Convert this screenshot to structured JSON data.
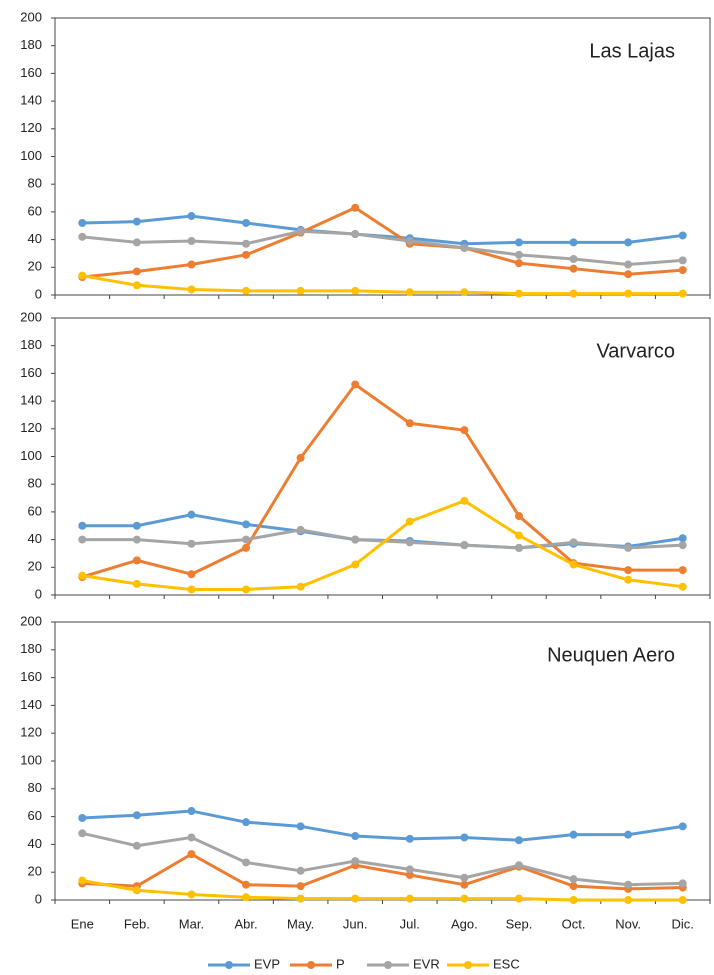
{
  "chart_data": [
    {
      "type": "line",
      "title": "Las Lajas",
      "ylim": [
        0,
        200
      ],
      "yticks": [
        0,
        20,
        40,
        60,
        80,
        100,
        120,
        140,
        160,
        180,
        200
      ],
      "series": [
        {
          "color": "#5b9bd5",
          "values": [
            52,
            53,
            57,
            52,
            47,
            44,
            41,
            37,
            38,
            38,
            38,
            43
          ]
        },
        {
          "color": "#ed7d31",
          "values": [
            13,
            17,
            22,
            29,
            45,
            63,
            37,
            34,
            23,
            19,
            15,
            18
          ]
        },
        {
          "color": "#a5a5a5",
          "values": [
            42,
            38,
            39,
            37,
            46,
            44,
            39,
            34,
            29,
            26,
            22,
            25
          ]
        },
        {
          "color": "#ffc000",
          "values": [
            14,
            7,
            4,
            3,
            3,
            3,
            2,
            2,
            1,
            1,
            1,
            1
          ]
        }
      ]
    },
    {
      "type": "line",
      "title": "Varvarco",
      "ylim": [
        0,
        200
      ],
      "yticks": [
        0,
        20,
        40,
        60,
        80,
        100,
        120,
        140,
        160,
        180,
        200
      ],
      "series": [
        {
          "color": "#5b9bd5",
          "values": [
            50,
            50,
            58,
            51,
            46,
            40,
            39,
            36,
            34,
            37,
            35,
            41
          ]
        },
        {
          "color": "#ed7d31",
          "values": [
            13,
            25,
            15,
            34,
            99,
            152,
            124,
            119,
            57,
            23,
            18,
            18
          ]
        },
        {
          "color": "#a5a5a5",
          "values": [
            40,
            40,
            37,
            40,
            47,
            40,
            38,
            36,
            34,
            38,
            34,
            36
          ]
        },
        {
          "color": "#ffc000",
          "values": [
            14,
            8,
            4,
            4,
            6,
            22,
            53,
            68,
            43,
            22,
            11,
            6
          ]
        }
      ]
    },
    {
      "type": "line",
      "title": "Neuquen Aero",
      "ylim": [
        0,
        200
      ],
      "yticks": [
        0,
        20,
        40,
        60,
        80,
        100,
        120,
        140,
        160,
        180,
        200
      ],
      "categories": [
        "Ene",
        "Feb.",
        "Mar.",
        "Abr.",
        "May.",
        "Jun.",
        "Jul.",
        "Ago.",
        "Sep.",
        "Oct.",
        "Nov.",
        "Dic."
      ],
      "series": [
        {
          "name": "EVP",
          "color": "#5b9bd5",
          "values": [
            59,
            61,
            64,
            56,
            53,
            46,
            44,
            45,
            43,
            47,
            47,
            53
          ]
        },
        {
          "name": "P",
          "color": "#ed7d31",
          "values": [
            12,
            10,
            33,
            11,
            10,
            25,
            18,
            11,
            24,
            10,
            8,
            9
          ]
        },
        {
          "name": "EVR",
          "color": "#a5a5a5",
          "values": [
            48,
            39,
            45,
            27,
            21,
            28,
            22,
            16,
            25,
            15,
            11,
            12
          ]
        },
        {
          "name": "ESC",
          "color": "#ffc000",
          "values": [
            14,
            7,
            4,
            2,
            1,
            1,
            1,
            1,
            1,
            0,
            0,
            0
          ]
        }
      ]
    }
  ]
}
